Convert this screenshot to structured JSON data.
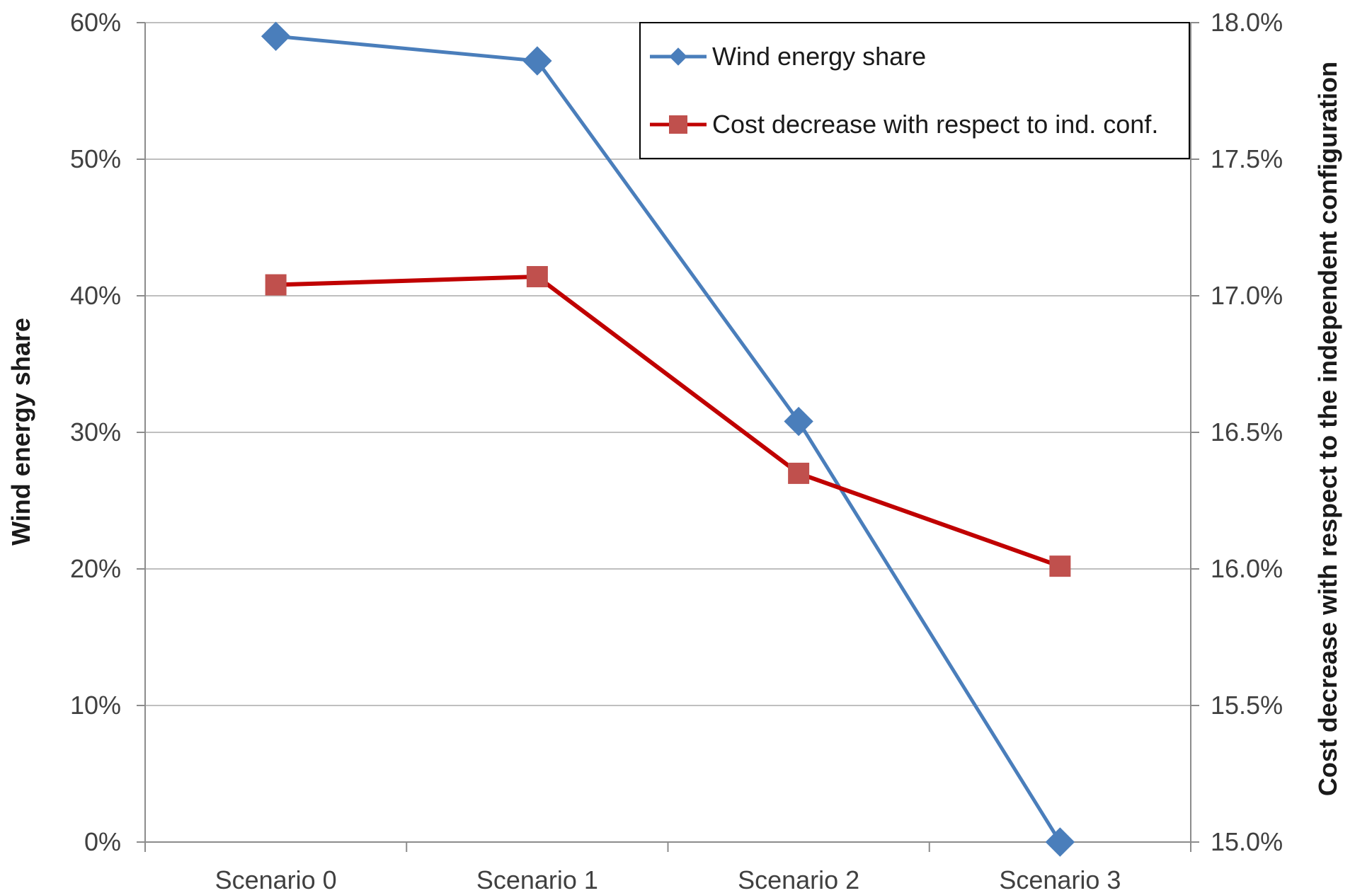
{
  "chart_data": {
    "type": "line",
    "categories": [
      "Scenario 0",
      "Scenario 1",
      "Scenario 2",
      "Scenario 3"
    ],
    "series": [
      {
        "name": "Wind energy share",
        "axis": "left",
        "values": [
          59.0,
          57.2,
          30.8,
          0.0
        ],
        "color": "#4a7ebb",
        "marker": "diamond"
      },
      {
        "name": "Cost decrease with respect to ind. conf.",
        "axis": "right",
        "values": [
          17.04,
          17.07,
          16.35,
          16.01
        ],
        "color": "#c00000",
        "marker_color": "#c0504d",
        "marker": "square"
      }
    ],
    "y_left": {
      "label": "Wind energy share",
      "range": [
        0,
        60
      ],
      "ticks": [
        0,
        10,
        20,
        30,
        40,
        50,
        60
      ],
      "tick_labels": [
        "0%",
        "10%",
        "20%",
        "30%",
        "40%",
        "50%",
        "60%"
      ]
    },
    "y_right": {
      "label": "Cost decrease with respect to the independent configuration",
      "range": [
        15.0,
        18.0
      ],
      "ticks": [
        15.0,
        15.5,
        16.0,
        16.5,
        17.0,
        17.5,
        18.0
      ],
      "tick_labels": [
        "15.0%",
        "15.5%",
        "16.0%",
        "16.5%",
        "17.0%",
        "17.5%",
        "18.0%"
      ]
    },
    "grid": true,
    "legend_position": "top-right"
  }
}
